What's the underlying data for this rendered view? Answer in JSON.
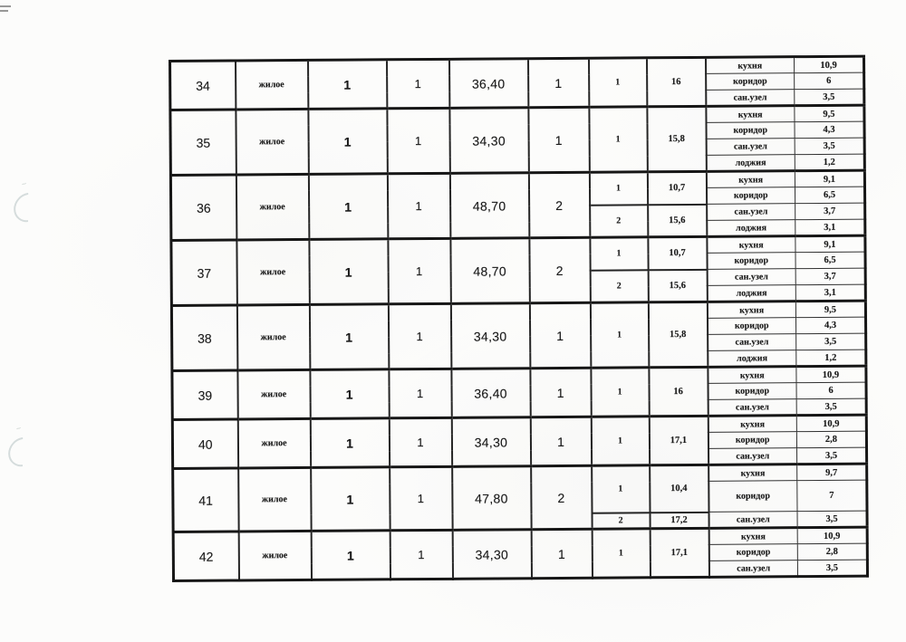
{
  "page": {
    "kind": "scanned-apartment-area-table",
    "paper_color": "#fcfcfb",
    "ink_color": "#1a1a1a",
    "line_color": "#242424",
    "artifact_color": "#96a8ac"
  },
  "table": {
    "columns": [
      "apartment_number",
      "type",
      "col3",
      "col4",
      "total_area",
      "rooms_count",
      "room_number",
      "room_area",
      "part_name",
      "part_area"
    ],
    "apartments": [
      {
        "number": "34",
        "type": "жилое",
        "col3": "1",
        "col4": "1",
        "total_area": "36,40",
        "rooms_count": "1",
        "rooms": [
          {
            "number": "1",
            "area": "16",
            "span": 3
          }
        ],
        "parts": [
          {
            "name": "кухня",
            "area": "10,9"
          },
          {
            "name": "коридор",
            "area": "6"
          },
          {
            "name": "сан.узел",
            "area": "3,5"
          }
        ]
      },
      {
        "number": "35",
        "type": "жилое",
        "col3": "1",
        "col4": "1",
        "total_area": "34,30",
        "rooms_count": "1",
        "rooms": [
          {
            "number": "1",
            "area": "15,8",
            "span": 4
          }
        ],
        "parts": [
          {
            "name": "кухня",
            "area": "9,5"
          },
          {
            "name": "коридор",
            "area": "4,3"
          },
          {
            "name": "сан.узел",
            "area": "3,5"
          },
          {
            "name": "лоджия",
            "area": "1,2"
          }
        ]
      },
      {
        "number": "36",
        "type": "жилое",
        "col3": "1",
        "col4": "1",
        "total_area": "48,70",
        "rooms_count": "2",
        "rooms": [
          {
            "number": "1",
            "area": "10,7",
            "span": 2
          },
          {
            "number": "2",
            "area": "15,6",
            "span": 2
          }
        ],
        "parts": [
          {
            "name": "кухня",
            "area": "9,1"
          },
          {
            "name": "коридор",
            "area": "6,5"
          },
          {
            "name": "сан.узел",
            "area": "3,7"
          },
          {
            "name": "лоджия",
            "area": "3,1"
          }
        ]
      },
      {
        "number": "37",
        "type": "жилое",
        "col3": "1",
        "col4": "1",
        "total_area": "48,70",
        "rooms_count": "2",
        "rooms": [
          {
            "number": "1",
            "area": "10,7",
            "span": 2
          },
          {
            "number": "2",
            "area": "15,6",
            "span": 2
          }
        ],
        "parts": [
          {
            "name": "кухня",
            "area": "9,1"
          },
          {
            "name": "коридор",
            "area": "6,5"
          },
          {
            "name": "сан.узел",
            "area": "3,7"
          },
          {
            "name": "лоджия",
            "area": "3,1"
          }
        ]
      },
      {
        "number": "38",
        "type": "жилое",
        "col3": "1",
        "col4": "1",
        "total_area": "34,30",
        "rooms_count": "1",
        "rooms": [
          {
            "number": "1",
            "area": "15,8",
            "span": 4
          }
        ],
        "parts": [
          {
            "name": "кухня",
            "area": "9,5"
          },
          {
            "name": "коридор",
            "area": "4,3"
          },
          {
            "name": "сан.узел",
            "area": "3,5"
          },
          {
            "name": "лоджия",
            "area": "1,2"
          }
        ]
      },
      {
        "number": "39",
        "type": "жилое",
        "col3": "1",
        "col4": "1",
        "total_area": "36,40",
        "rooms_count": "1",
        "rooms": [
          {
            "number": "1",
            "area": "16",
            "span": 3
          }
        ],
        "parts": [
          {
            "name": "кухня",
            "area": "10,9"
          },
          {
            "name": "коридор",
            "area": "6"
          },
          {
            "name": "сан.узел",
            "area": "3,5"
          }
        ]
      },
      {
        "number": "40",
        "type": "жилое",
        "col3": "1",
        "col4": "1",
        "total_area": "34,30",
        "rooms_count": "1",
        "rooms": [
          {
            "number": "1",
            "area": "17,1",
            "span": 3
          }
        ],
        "parts": [
          {
            "name": "кухня",
            "area": "10,9"
          },
          {
            "name": "коридор",
            "area": "2,8"
          },
          {
            "name": "сан.узел",
            "area": "3,5"
          }
        ]
      },
      {
        "number": "41",
        "type": "жилое",
        "col3": "1",
        "col4": "1",
        "total_area": "47,80",
        "rooms_count": "2",
        "rooms": [
          {
            "number": "1",
            "area": "10,4",
            "span": 2
          },
          {
            "number": "2",
            "area": "17,2",
            "span": 1
          }
        ],
        "parts": [
          {
            "name": "кухня",
            "area": "9,7"
          },
          {
            "name": "коридор",
            "area": "7",
            "tall": true
          },
          {
            "name": "сан.узел",
            "area": "3,5"
          }
        ]
      },
      {
        "number": "42",
        "type": "жилое",
        "col3": "1",
        "col4": "1",
        "total_area": "34,30",
        "rooms_count": "1",
        "rooms": [
          {
            "number": "1",
            "area": "17,1",
            "span": 3
          }
        ],
        "parts": [
          {
            "name": "кухня",
            "area": "10,9"
          },
          {
            "name": "коридор",
            "area": "2,8"
          },
          {
            "name": "сан.узел",
            "area": "3,5"
          }
        ]
      }
    ]
  }
}
